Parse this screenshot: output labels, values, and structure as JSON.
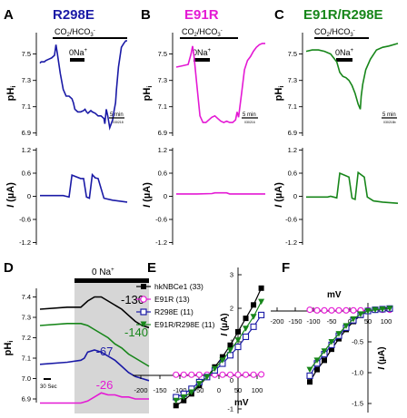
{
  "panels": {
    "A": {
      "letter": "A",
      "title": "R298E",
      "title_color": "#1a1aa6"
    },
    "B": {
      "letter": "B",
      "title": "E91R",
      "title_color": "#e419d4"
    },
    "C": {
      "letter": "C",
      "title": "E91R/R298E",
      "title_color": "#17861a"
    },
    "D": {
      "letter": "D"
    },
    "E": {
      "letter": "E"
    },
    "F": {
      "letter": "F"
    }
  },
  "labels": {
    "co2_base": "CO",
    "co2_sub": "2",
    "co2_mid": "/HCO",
    "co2_sub2": "3",
    "co2_sup": "-",
    "na0_base": "0Na",
    "na0_sup": "+",
    "na0_d_base": "0 Na",
    "na0_d_sup": "+",
    "phi_main": "pH",
    "phi_sub": "i",
    "i_italic": "I",
    "i_units": " (µA)",
    "mv": "mV",
    "scale_5min": "5 min",
    "scale_30sec": "30 Sec",
    "tiny_code_a": "030218",
    "tiny_code_b": "030216",
    "tiny_code_c": "030218b"
  },
  "colors": {
    "wt": "#000000",
    "R298E": "#1a1aa6",
    "E91R": "#e419d4",
    "E91R_R298E": "#17861a",
    "shade": "#d6d6d6"
  },
  "chart_data": [
    {
      "panel": "A",
      "type": "line",
      "title": "R298E",
      "series_color": "#1a1aa6",
      "ylabel": "pHi",
      "ylim": [
        6.85,
        7.65
      ],
      "yticks": [
        "7.5",
        "7.3",
        "7.1",
        "6.9"
      ],
      "scale_bar": "5 min",
      "x_min": [
        0,
        0.4,
        1.5,
        2,
        3,
        4,
        5,
        5.5,
        6,
        7,
        8,
        9,
        10,
        11,
        11.5,
        12,
        13,
        14,
        15,
        15.5,
        16,
        16.5,
        17,
        17.5,
        18,
        19,
        20,
        21,
        22,
        22.3,
        22.8,
        23.3,
        24,
        25,
        25.5,
        26,
        26.3,
        27,
        28,
        28.8,
        29.5,
        30
      ],
      "y": [
        7.43,
        7.44,
        7.44,
        7.45,
        7.46,
        7.47,
        7.49,
        7.57,
        7.5,
        7.35,
        7.23,
        7.18,
        7.18,
        7.16,
        7.13,
        7.08,
        7.06,
        7.06,
        7.07,
        7.08,
        7.06,
        7.05,
        7.06,
        7.07,
        7.06,
        7.05,
        7.03,
        7.03,
        7.01,
        6.97,
        7.08,
        7.03,
        6.94,
        7.0,
        7.07,
        7.13,
        7.23,
        7.4,
        7.55,
        7.58,
        7.6,
        7.6
      ]
    },
    {
      "panel": "A",
      "type": "line",
      "title": "R298E",
      "series_color": "#1a1aa6",
      "ylabel": "I (µA)",
      "ylim": [
        -1.2,
        1.2
      ],
      "yticks": [
        "1.2",
        "0.6",
        "0",
        "-0.6",
        "-1.2"
      ],
      "x_min": [
        0,
        8,
        9,
        10,
        11,
        14,
        15,
        16,
        17,
        18,
        19,
        20,
        22,
        25,
        30
      ],
      "y": [
        0.02,
        0.02,
        0.0,
        -0.02,
        0.55,
        0.46,
        0.46,
        -0.02,
        -0.05,
        0.56,
        0.48,
        0.46,
        -0.05,
        -0.1,
        -0.15
      ]
    },
    {
      "panel": "B",
      "type": "line",
      "title": "E91R",
      "series_color": "#e419d4",
      "ylabel": "pHi",
      "ylim": [
        6.85,
        7.65
      ],
      "yticks": [
        "7.5",
        "7.3",
        "7.1",
        "6.9"
      ],
      "scale_bar": "5 min",
      "x_min": [
        0,
        2,
        4,
        5,
        5.5,
        6,
        7,
        8,
        9,
        10,
        11,
        12,
        13,
        14,
        15,
        16,
        17,
        18,
        19,
        20,
        20.5,
        21,
        22,
        23,
        24,
        25,
        26,
        27,
        28,
        29,
        30
      ],
      "y": [
        7.4,
        7.41,
        7.42,
        7.5,
        7.56,
        7.48,
        7.25,
        7.03,
        6.98,
        6.98,
        7.0,
        7.02,
        7.03,
        7.01,
        6.99,
        6.98,
        6.99,
        6.98,
        6.98,
        7.0,
        7.06,
        7.02,
        7.2,
        7.38,
        7.45,
        7.48,
        7.52,
        7.55,
        7.57,
        7.58,
        7.58
      ]
    },
    {
      "panel": "B",
      "type": "line",
      "title": "E91R",
      "series_color": "#e419d4",
      "ylabel": "I (µA)",
      "ylim": [
        -1.2,
        1.2
      ],
      "yticks": [
        "1.2",
        "0.6",
        "0",
        "-0.6",
        "-1.2"
      ],
      "x_min": [
        0,
        6,
        7,
        12,
        13,
        17,
        18,
        30
      ],
      "y": [
        0.06,
        0.06,
        0.06,
        0.07,
        0.09,
        0.09,
        0.06,
        0.06
      ]
    },
    {
      "panel": "C",
      "type": "line",
      "title": "E91R/R298E",
      "series_color": "#17861a",
      "ylabel": "pHi",
      "ylim": [
        6.85,
        7.65
      ],
      "yticks": [
        "7.5",
        "7.3",
        "7.1",
        "6.9"
      ],
      "scale_bar": "5 min",
      "x_min": [
        0,
        2,
        4,
        6,
        8,
        10,
        11,
        12,
        13,
        14,
        15,
        16,
        17,
        17.7,
        18,
        18.5,
        19.5,
        21,
        23,
        25,
        27,
        30
      ],
      "y": [
        7.52,
        7.53,
        7.53,
        7.52,
        7.5,
        7.44,
        7.36,
        7.33,
        7.32,
        7.3,
        7.26,
        7.2,
        7.12,
        7.08,
        7.18,
        7.27,
        7.38,
        7.46,
        7.53,
        7.55,
        7.56,
        7.58
      ]
    },
    {
      "panel": "C",
      "type": "line",
      "title": "E91R/R298E",
      "series_color": "#17861a",
      "ylabel": "I (µA)",
      "ylim": [
        -1.2,
        1.2
      ],
      "yticks": [
        "1.2",
        "0.6",
        "0",
        "-0.6",
        "-1.2"
      ],
      "x_min": [
        0,
        7,
        8,
        10,
        11,
        14,
        15,
        16,
        17,
        19,
        20,
        22,
        25,
        30
      ],
      "y": [
        -0.02,
        -0.02,
        0.0,
        -0.04,
        0.6,
        0.5,
        -0.05,
        -0.08,
        0.62,
        0.5,
        -0.02,
        -0.12,
        -0.15,
        -0.18
      ]
    },
    {
      "panel": "D",
      "type": "line",
      "ylabel": "pHi",
      "ylim": [
        6.85,
        7.45
      ],
      "yticks": [
        "7.4",
        "7.3",
        "7.2",
        "7.1",
        "7.0",
        "6.9"
      ],
      "shaded_label": "0 Na+",
      "scale_bar": "30 Sec",
      "series": [
        {
          "name": "-130",
          "color": "#000000",
          "x_sec": [
            0,
            40,
            60,
            70,
            80,
            90,
            100,
            110,
            120,
            130,
            140,
            150,
            160
          ],
          "y": [
            7.34,
            7.35,
            7.35,
            7.38,
            7.4,
            7.4,
            7.38,
            7.36,
            7.34,
            7.31,
            7.28,
            7.26,
            7.25
          ]
        },
        {
          "name": "-140",
          "color": "#17861a",
          "x_sec": [
            0,
            40,
            60,
            70,
            80,
            90,
            100,
            110,
            120,
            130,
            140,
            150,
            160
          ],
          "y": [
            7.26,
            7.27,
            7.27,
            7.26,
            7.24,
            7.22,
            7.2,
            7.17,
            7.15,
            7.12,
            7.1,
            7.08,
            7.06
          ]
        },
        {
          "name": "-67",
          "color": "#1a1aa6",
          "x_sec": [
            0,
            40,
            60,
            65,
            70,
            80,
            90,
            100,
            110,
            120,
            130,
            140,
            150,
            160
          ],
          "y": [
            7.07,
            7.08,
            7.09,
            7.1,
            7.13,
            7.14,
            7.13,
            7.11,
            7.09,
            7.06,
            7.03,
            7.01,
            7.0,
            6.99
          ]
        },
        {
          "name": "-26",
          "color": "#e419d4",
          "x_sec": [
            0,
            40,
            60,
            70,
            80,
            90,
            100,
            110,
            120,
            130,
            140,
            150,
            160
          ],
          "y": [
            6.88,
            6.88,
            6.88,
            6.89,
            6.91,
            6.93,
            6.92,
            6.92,
            6.91,
            6.91,
            6.9,
            6.9,
            6.9
          ]
        }
      ]
    },
    {
      "panel": "E",
      "type": "line",
      "xlabel": "mV",
      "ylabel": "I (µA)",
      "xlim": [
        -200,
        100
      ],
      "ylim": [
        -1,
        3
      ],
      "xticks": [
        "-200",
        "-150",
        "-100",
        "-50",
        "0",
        "50",
        "100"
      ],
      "yticks": [
        "3",
        "2",
        "1",
        "0",
        "-1"
      ],
      "x": [
        -160,
        -140,
        -120,
        -100,
        -80,
        -60,
        -40,
        -20,
        0,
        20,
        40,
        60
      ],
      "series": [
        {
          "name": "hkNBCe1 (33)",
          "color": "#000000",
          "marker": "filled-square",
          "y": [
            -0.9,
            -0.75,
            -0.55,
            -0.3,
            -0.05,
            0.25,
            0.55,
            0.9,
            1.3,
            1.7,
            2.1,
            2.6
          ]
        },
        {
          "name": "E91R (13)",
          "color": "#e419d4",
          "marker": "open-circle",
          "y": [
            0.02,
            0.02,
            0.02,
            0.02,
            0.02,
            0.02,
            0.02,
            0.02,
            0.02,
            0.02,
            0.02,
            0.03
          ]
        },
        {
          "name": "R298E (11)",
          "color": "#1a1aa6",
          "marker": "open-square",
          "y": [
            -0.65,
            -0.55,
            -0.4,
            -0.2,
            -0.05,
            0.15,
            0.35,
            0.6,
            0.85,
            1.15,
            1.45,
            1.8
          ]
        },
        {
          "name": "E91R/R298E (11)",
          "color": "#17861a",
          "marker": "filled-triangle-down",
          "y": [
            -0.75,
            -0.65,
            -0.5,
            -0.25,
            -0.05,
            0.2,
            0.45,
            0.75,
            1.05,
            1.4,
            1.75,
            2.2
          ]
        }
      ]
    },
    {
      "panel": "F",
      "type": "line",
      "xlabel": "mV",
      "ylabel": "I (µA)",
      "xlim": [
        -200,
        100
      ],
      "ylim": [
        -1.75,
        0.25
      ],
      "xticks": [
        "-200",
        "-150",
        "-100",
        "-50",
        "0",
        "50",
        "100"
      ],
      "yticks": [
        "-0.5",
        "-1.0",
        "-1.5"
      ],
      "x": [
        -160,
        -140,
        -120,
        -100,
        -80,
        -60,
        -40,
        -20,
        0,
        20,
        40,
        60
      ],
      "series": [
        {
          "name": "hkNBCe1",
          "color": "#000000",
          "marker": "filled-square",
          "y": [
            -1.15,
            -0.95,
            -0.8,
            -0.62,
            -0.45,
            -0.3,
            -0.17,
            -0.07,
            0.0,
            0.02,
            0.03,
            0.04
          ]
        },
        {
          "name": "E91R",
          "color": "#e419d4",
          "marker": "open-circle",
          "y": [
            0.02,
            0.01,
            0.01,
            0.01,
            0.01,
            0.01,
            0.01,
            0.01,
            0.01,
            0.02,
            0.02,
            0.02
          ]
        },
        {
          "name": "R298E",
          "color": "#1a1aa6",
          "marker": "open-square",
          "y": [
            -1.05,
            -0.85,
            -0.7,
            -0.55,
            -0.4,
            -0.27,
            -0.15,
            -0.06,
            0.0,
            0.02,
            0.03,
            0.04
          ]
        },
        {
          "name": "E91R/R298E",
          "color": "#17861a",
          "marker": "filled-triangle-down",
          "y": [
            -0.95,
            -0.8,
            -0.65,
            -0.5,
            -0.37,
            -0.24,
            -0.13,
            -0.05,
            0.0,
            0.02,
            0.03,
            0.04
          ]
        }
      ]
    }
  ]
}
